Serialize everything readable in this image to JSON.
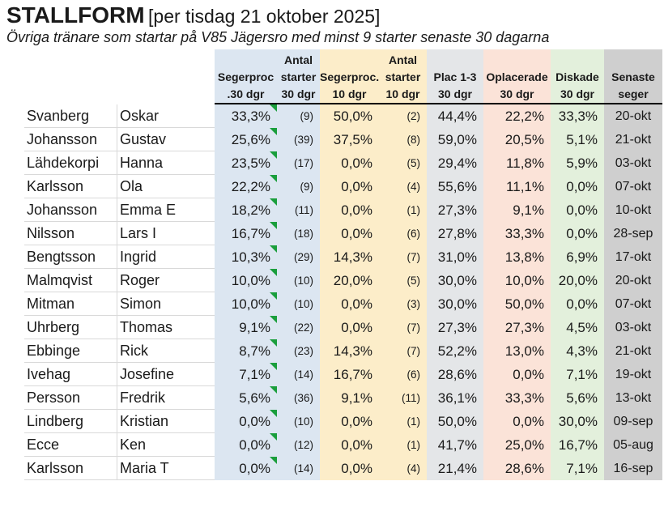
{
  "title": {
    "main": "STALLFORM",
    "suffix": "[per tisdag 21 oktober 2025]"
  },
  "subtitle": "Övriga tränare som startar på V85 Jägersro med minst 9 starter senaste 30 dagarna",
  "colors": {
    "blue": "#DCE6F1",
    "yellow": "#FCEDC9",
    "gray": "#E4E6E8",
    "pink": "#FBE3D8",
    "green": "#E3F0DC",
    "dark_gray": "#CFCFCF",
    "note_indicator_green": "#1A9E3C",
    "header_border": "#000000",
    "grid_line": "#D9D9D9"
  },
  "columns": [
    {
      "id": "segerproc-30dgr",
      "lines": [
        "",
        "Segerproc",
        ".30 dgr"
      ],
      "bg": "#DCE6F1"
    },
    {
      "id": "antal-starter-30dgr",
      "lines": [
        "Antal",
        "starter",
        "30 dgr"
      ],
      "bg": "#DCE6F1"
    },
    {
      "id": "segerproc-10dgr",
      "lines": [
        "",
        "Segerproc.",
        "10 dgr"
      ],
      "bg": "#FCEDC9"
    },
    {
      "id": "antal-starter-10dgr",
      "lines": [
        "Antal",
        "starter",
        "10 dgr"
      ],
      "bg": "#FCEDC9"
    },
    {
      "id": "plac-1-3-30dgr",
      "lines": [
        "",
        "Plac 1-3",
        "30 dgr"
      ],
      "bg": "#E4E6E8"
    },
    {
      "id": "oplacerade-30dgr",
      "lines": [
        "",
        "Oplacerade",
        "30 dgr"
      ],
      "bg": "#FBE3D8"
    },
    {
      "id": "diskade-30dgr",
      "lines": [
        "",
        "Diskade",
        "30 dgr"
      ],
      "bg": "#E3F0DC"
    },
    {
      "id": "senaste-seger",
      "lines": [
        "",
        "Senaste",
        "seger"
      ],
      "bg": "#CFCFCF"
    }
  ],
  "rows": [
    {
      "last": "Svanberg",
      "first": "Oskar",
      "seg30": "33,3%",
      "ant30": "(9)",
      "seg10": "50,0%",
      "ant10": "(2)",
      "plac": "44,4%",
      "opla": "22,2%",
      "disk": "33,3%",
      "senaste": "20-okt"
    },
    {
      "last": "Johansson",
      "first": "Gustav",
      "seg30": "25,6%",
      "ant30": "(39)",
      "seg10": "37,5%",
      "ant10": "(8)",
      "plac": "59,0%",
      "opla": "20,5%",
      "disk": "5,1%",
      "senaste": "21-okt"
    },
    {
      "last": "Lähdekorpi",
      "first": "Hanna",
      "seg30": "23,5%",
      "ant30": "(17)",
      "seg10": "0,0%",
      "ant10": "(5)",
      "plac": "29,4%",
      "opla": "11,8%",
      "disk": "5,9%",
      "senaste": "03-okt"
    },
    {
      "last": "Karlsson",
      "first": "Ola",
      "seg30": "22,2%",
      "ant30": "(9)",
      "seg10": "0,0%",
      "ant10": "(4)",
      "plac": "55,6%",
      "opla": "11,1%",
      "disk": "0,0%",
      "senaste": "07-okt"
    },
    {
      "last": "Johansson",
      "first": "Emma E",
      "seg30": "18,2%",
      "ant30": "(11)",
      "seg10": "0,0%",
      "ant10": "(1)",
      "plac": "27,3%",
      "opla": "9,1%",
      "disk": "0,0%",
      "senaste": "10-okt"
    },
    {
      "last": "Nilsson",
      "first": "Lars I",
      "seg30": "16,7%",
      "ant30": "(18)",
      "seg10": "0,0%",
      "ant10": "(6)",
      "plac": "27,8%",
      "opla": "33,3%",
      "disk": "0,0%",
      "senaste": "28-sep"
    },
    {
      "last": "Bengtsson",
      "first": "Ingrid",
      "seg30": "10,3%",
      "ant30": "(29)",
      "seg10": "14,3%",
      "ant10": "(7)",
      "plac": "31,0%",
      "opla": "13,8%",
      "disk": "6,9%",
      "senaste": "17-okt"
    },
    {
      "last": "Malmqvist",
      "first": "Roger",
      "seg30": "10,0%",
      "ant30": "(10)",
      "seg10": "20,0%",
      "ant10": "(5)",
      "plac": "30,0%",
      "opla": "10,0%",
      "disk": "20,0%",
      "senaste": "20-okt"
    },
    {
      "last": "Mitman",
      "first": "Simon",
      "seg30": "10,0%",
      "ant30": "(10)",
      "seg10": "0,0%",
      "ant10": "(3)",
      "plac": "30,0%",
      "opla": "50,0%",
      "disk": "0,0%",
      "senaste": "07-okt"
    },
    {
      "last": "Uhrberg",
      "first": "Thomas",
      "seg30": "9,1%",
      "ant30": "(22)",
      "seg10": "0,0%",
      "ant10": "(7)",
      "plac": "27,3%",
      "opla": "27,3%",
      "disk": "4,5%",
      "senaste": "03-okt"
    },
    {
      "last": "Ebbinge",
      "first": "Rick",
      "seg30": "8,7%",
      "ant30": "(23)",
      "seg10": "14,3%",
      "ant10": "(7)",
      "plac": "52,2%",
      "opla": "13,0%",
      "disk": "4,3%",
      "senaste": "21-okt"
    },
    {
      "last": "Ivehag",
      "first": "Josefine",
      "seg30": "7,1%",
      "ant30": "(14)",
      "seg10": "16,7%",
      "ant10": "(6)",
      "plac": "28,6%",
      "opla": "0,0%",
      "disk": "7,1%",
      "senaste": "19-okt"
    },
    {
      "last": "Persson",
      "first": "Fredrik",
      "seg30": "5,6%",
      "ant30": "(36)",
      "seg10": "9,1%",
      "ant10": "(11)",
      "plac": "36,1%",
      "opla": "33,3%",
      "disk": "5,6%",
      "senaste": "13-okt"
    },
    {
      "last": "Lindberg",
      "first": "Kristian",
      "seg30": "0,0%",
      "ant30": "(10)",
      "seg10": "0,0%",
      "ant10": "(1)",
      "plac": "50,0%",
      "opla": "0,0%",
      "disk": "30,0%",
      "senaste": "09-sep"
    },
    {
      "last": "Ecce",
      "first": "Ken",
      "seg30": "0,0%",
      "ant30": "(12)",
      "seg10": "0,0%",
      "ant10": "(1)",
      "plac": "41,7%",
      "opla": "25,0%",
      "disk": "16,7%",
      "senaste": "05-aug"
    },
    {
      "last": "Karlsson",
      "first": "Maria T",
      "seg30": "0,0%",
      "ant30": "(14)",
      "seg10": "0,0%",
      "ant10": "(4)",
      "plac": "21,4%",
      "opla": "28,6%",
      "disk": "7,1%",
      "senaste": "16-sep"
    }
  ]
}
